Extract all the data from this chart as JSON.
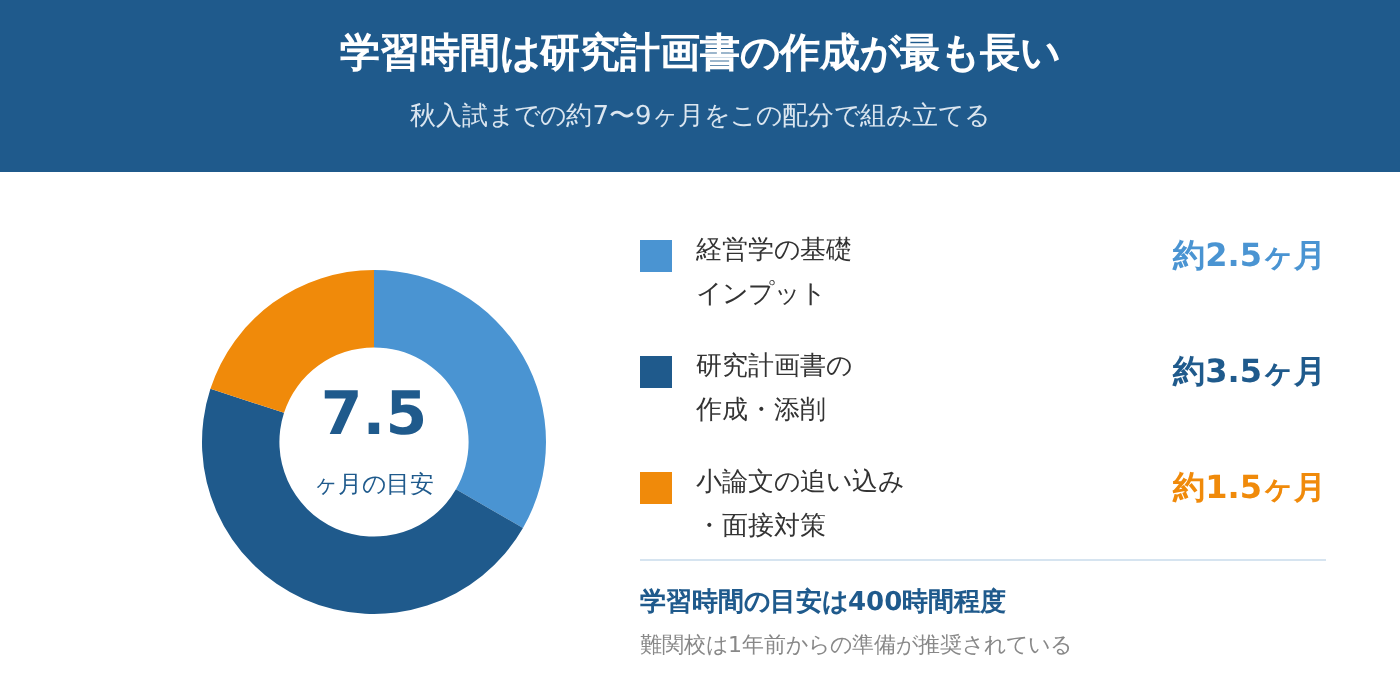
{
  "chart_data": {
    "type": "donut",
    "title": "学習時間は研究計画書の作成が最も長い",
    "subtitle": "秋入試までの約7〜9ヶ月をこの配分で組み立てる",
    "categories": [
      "経営学の基礎インプット",
      "研究計画書の作成・添削",
      "小論文の追い込み・面接対策"
    ],
    "values": [
      2.5,
      3.5,
      1.5
    ],
    "colors": [
      "#4a94d2",
      "#1f5a8c",
      "#f08a0a"
    ],
    "value_labels": [
      "約2.5ヶ月",
      "約3.5ヶ月",
      "約1.5ヶ月"
    ],
    "legend": "right",
    "annotations": [
      "7.5",
      "ヶ月の目安",
      "学習時間の目安は400時間程度",
      "難関校は1年前からの準備が推奨されている"
    ]
  }
}
